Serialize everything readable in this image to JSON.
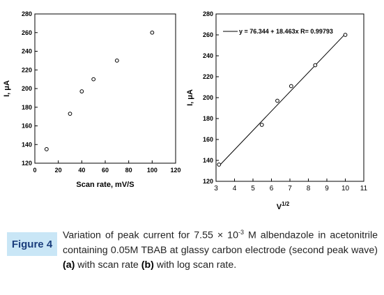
{
  "caption": {
    "label": "Figure 4",
    "line1_pre": "Variation of peak current for 7.55 × 10",
    "exponent": "-3",
    "line1_post": " M albendazole in acetonitrile containing 0.05M TBAB at glassy carbon electrode (second peak wave) ",
    "part_a": "(a)",
    "mid": " with scan rate ",
    "part_b": "(b)",
    "end": " with log scan rate."
  },
  "chart_data": [
    {
      "type": "scatter",
      "title": "",
      "xlabel": "Scan rate, mV/S",
      "ylabel": "I, μA",
      "xlim": [
        0,
        120
      ],
      "ylim": [
        120,
        280
      ],
      "xticks": [
        "0",
        "20",
        "40",
        "60",
        "80",
        "100",
        "120"
      ],
      "yticks": [
        "120",
        "140",
        "160",
        "180",
        "200",
        "220",
        "240",
        "260",
        "280"
      ],
      "series": [
        {
          "x": [
            10,
            30,
            40,
            50,
            70,
            100
          ],
          "y": [
            135,
            173,
            197,
            210,
            230,
            260
          ]
        }
      ]
    },
    {
      "type": "scatter",
      "title": "",
      "xlabel": "V",
      "xlabel_sup": "1/2",
      "ylabel": "I, μA",
      "xlim": [
        3,
        11
      ],
      "ylim": [
        120,
        280
      ],
      "xticks": [
        "3",
        "4",
        "5",
        "6",
        "7",
        "8",
        "9",
        "10",
        "11"
      ],
      "yticks": [
        "120",
        "140",
        "160",
        "180",
        "200",
        "220",
        "240",
        "260",
        "280"
      ],
      "legend": "y = 76.344 + 18.463x  R= 0.99793",
      "fit": {
        "intercept": 76.344,
        "slope": 18.463
      },
      "series": [
        {
          "x": [
            3.16,
            5.48,
            6.32,
            7.07,
            8.37,
            10.0
          ],
          "y": [
            136,
            174,
            197,
            211,
            231,
            260
          ]
        }
      ]
    }
  ]
}
